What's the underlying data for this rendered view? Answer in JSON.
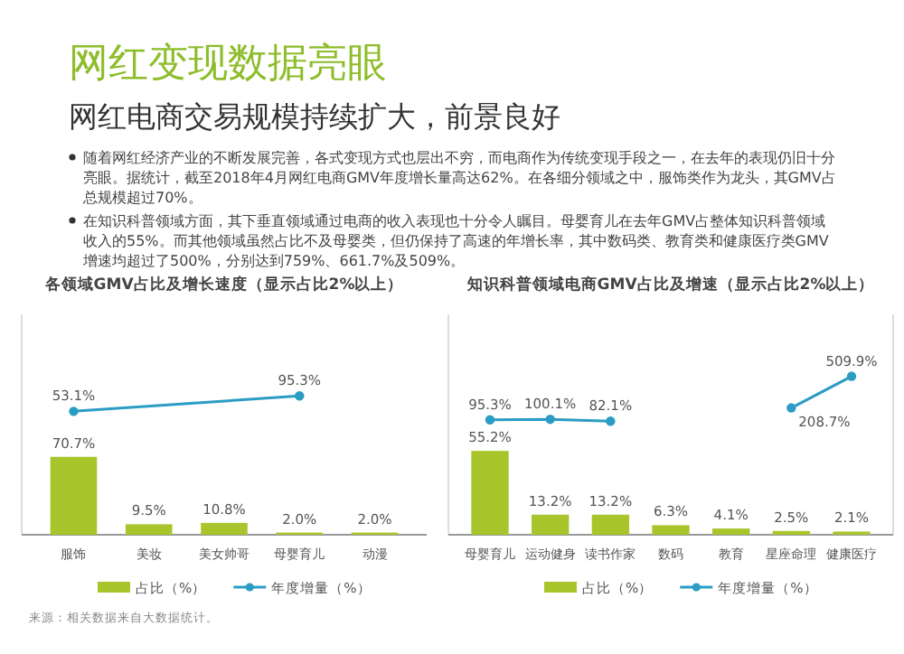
{
  "chart_data": [
    {
      "type": "other",
      "title": "网红变现数据亮眼",
      "subtitle": "网红电商交易规模持续扩大，前景良好",
      "annotations": [
        "随着网红经济产业的不断发展完善，各式变现方式也层出不穷，而电商作为传统变现手段之一，在去年的表现仍旧十分亮眼。据统计，截至2018年4月网红电商GMV年度增长量高达62%。在各细分领域之中，服饰类作为龙头，其GMV占总规模超过70%。",
        "在知识科普领域方面，其下垂直领域通过电商的收入表现也十分令人瞩目。母婴育儿在去年GMV占整体知识科普领域收入的55%。而其他领域虽然占比不及母婴类，但仍保持了高速的年增长率，其中数码类、教育类和健康医疗类GMV增速均超过了500%，分别达到759%、661.7%及509%。"
      ]
    },
    {
      "type": "bar",
      "title": "各领域GMV占比及增长速度（显示占比2%以上）",
      "categories": [
        "服饰",
        "美妆",
        "美女帅哥",
        "母婴育儿",
        "动漫"
      ],
      "series": [
        {
          "name": "占比（%）",
          "type": "bar",
          "color": "#a8c62c",
          "values": [
            70.7,
            9.5,
            10.8,
            2.0,
            2.0
          ],
          "value_labels": [
            "70.7%",
            "9.5%",
            "10.8%",
            "2.0%",
            "2.0%"
          ]
        },
        {
          "name": "年度增量（%）",
          "type": "line",
          "axis": "y2",
          "color": "#2b9cc4",
          "values": [
            53.1,
            null,
            null,
            95.3,
            null
          ],
          "value_labels": [
            "53.1%",
            null,
            null,
            "95.3%",
            null
          ]
        }
      ],
      "ylim": [
        0,
        200
      ],
      "tick_labels": "x",
      "legend": "bottom",
      "marker": "circle",
      "annotations": [
        "来源：相关数据来自大数据统计。"
      ]
    },
    {
      "type": "bar",
      "title": "知识科普领域电商GMV占比及增速（显示占比2%以上）",
      "categories": [
        "母婴育儿",
        "运动健身",
        "读书作家",
        "数码",
        "教育",
        "星座命理",
        "健康医疗"
      ],
      "series": [
        {
          "name": "占比（%）",
          "type": "bar",
          "color": "#a8c62c",
          "values": [
            55.2,
            13.2,
            13.2,
            6.3,
            4.1,
            2.5,
            2.1
          ],
          "value_labels": [
            "55.2%",
            "13.2%",
            "13.2%",
            "6.3%",
            "4.1%",
            "2.5%",
            "2.1%"
          ]
        },
        {
          "name": "年度增量（%）",
          "type": "line",
          "axis": "y2",
          "color": "#2b9cc4",
          "values": [
            95.3,
            100.1,
            82.1,
            null,
            null,
            208.7,
            509.9
          ],
          "value_labels": [
            "95.3%",
            "100.1%",
            "82.1%",
            null,
            null,
            "208.7%",
            "509.9%"
          ]
        }
      ],
      "ylim": [
        0,
        145
      ],
      "y2lim": [
        -1000,
        1100
      ],
      "tick_labels": "x",
      "legend": "bottom",
      "marker": "circle"
    }
  ]
}
